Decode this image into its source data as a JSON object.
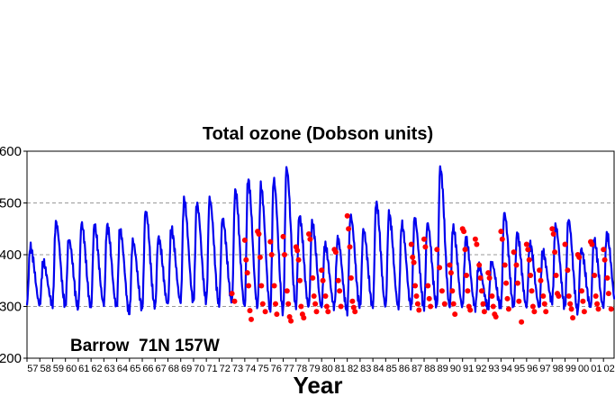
{
  "chart_data": {
    "type": "line",
    "title": "Total ozone (Dobson units)",
    "xlabel": "Year",
    "ylabel": "",
    "annotation": "Barrow  71N 157W",
    "xlim": [
      1957,
      2002.9
    ],
    "ylim": [
      200,
      600
    ],
    "yticks": [
      200,
      300,
      400,
      500,
      600
    ],
    "xtick_labels": [
      "57",
      "58",
      "59",
      "60",
      "61",
      "62",
      "63",
      "64",
      "65",
      "66",
      "67",
      "68",
      "69",
      "70",
      "71",
      "72",
      "73",
      "74",
      "75",
      "76",
      "77",
      "78",
      "79",
      "80",
      "81",
      "82",
      "83",
      "84",
      "85",
      "86",
      "87",
      "88",
      "89",
      "90",
      "91",
      "92",
      "93",
      "94",
      "95",
      "96",
      "97",
      "98",
      "99",
      "00",
      "01",
      "02"
    ],
    "grid": "horizontal dashed at 300, 400, 500",
    "colors": {
      "series": "#0000ee",
      "points": "#ff0000",
      "grid": "#999999"
    },
    "series": [
      {
        "kind": "line",
        "seasonal_peaks": [
          {
            "year": 1957,
            "peak": 415
          },
          {
            "year": 1958,
            "peak": 385
          },
          {
            "year": 1959,
            "peak": 462
          },
          {
            "year": 1960,
            "peak": 430
          },
          {
            "year": 1961,
            "peak": 460
          },
          {
            "year": 1962,
            "peak": 455
          },
          {
            "year": 1963,
            "peak": 455
          },
          {
            "year": 1964,
            "peak": 448
          },
          {
            "year": 1965,
            "peak": 426
          },
          {
            "year": 1966,
            "peak": 485
          },
          {
            "year": 1967,
            "peak": 432
          },
          {
            "year": 1968,
            "peak": 450
          },
          {
            "year": 1969,
            "peak": 505
          },
          {
            "year": 1970,
            "peak": 498
          },
          {
            "year": 1971,
            "peak": 508
          },
          {
            "year": 1972,
            "peak": 470
          },
          {
            "year": 1973,
            "peak": 523
          },
          {
            "year": 1974,
            "peak": 545
          },
          {
            "year": 1975,
            "peak": 532
          },
          {
            "year": 1976,
            "peak": 545
          },
          {
            "year": 1977,
            "peak": 567
          },
          {
            "year": 1978,
            "peak": 475
          },
          {
            "year": 1979,
            "peak": 460
          },
          {
            "year": 1980,
            "peak": 418
          },
          {
            "year": 1981,
            "peak": 430
          },
          {
            "year": 1982,
            "peak": 475
          },
          {
            "year": 1983,
            "peak": 448
          },
          {
            "year": 1984,
            "peak": 500
          },
          {
            "year": 1985,
            "peak": 478
          },
          {
            "year": 1986,
            "peak": 458
          },
          {
            "year": 1987,
            "peak": 470
          },
          {
            "year": 1988,
            "peak": 460
          },
          {
            "year": 1989,
            "peak": 568
          },
          {
            "year": 1990,
            "peak": 452
          },
          {
            "year": 1991,
            "peak": 430
          },
          {
            "year": 1992,
            "peak": 380
          },
          {
            "year": 1993,
            "peak": 385
          },
          {
            "year": 1994,
            "peak": 480
          },
          {
            "year": 1995,
            "peak": 440
          },
          {
            "year": 1996,
            "peak": 420
          },
          {
            "year": 1997,
            "peak": 405
          },
          {
            "year": 1998,
            "peak": 455
          },
          {
            "year": 1999,
            "peak": 468
          },
          {
            "year": 2000,
            "peak": 410
          },
          {
            "year": 2001,
            "peak": 428
          },
          {
            "year": 2002,
            "peak": 440
          }
        ],
        "seasonal_troughs": [
          {
            "year": 1957,
            "trough": 305
          },
          {
            "year": 1958,
            "trough": 305
          },
          {
            "year": 1959,
            "trough": 305
          },
          {
            "year": 1960,
            "trough": 303
          },
          {
            "year": 1961,
            "trough": 298
          },
          {
            "year": 1962,
            "trough": 298
          },
          {
            "year": 1963,
            "trough": 305
          },
          {
            "year": 1964,
            "trough": 300
          },
          {
            "year": 1965,
            "trough": 288
          },
          {
            "year": 1966,
            "trough": 298
          },
          {
            "year": 1967,
            "trough": 300
          },
          {
            "year": 1968,
            "trough": 305
          },
          {
            "year": 1969,
            "trough": 310
          },
          {
            "year": 1970,
            "trough": 310
          },
          {
            "year": 1971,
            "trough": 312
          },
          {
            "year": 1972,
            "trough": 305
          },
          {
            "year": 1973,
            "trough": 310
          },
          {
            "year": 1974,
            "trough": 300
          },
          {
            "year": 1975,
            "trough": 300
          },
          {
            "year": 1976,
            "trough": 295
          },
          {
            "year": 1977,
            "trough": 290
          },
          {
            "year": 1978,
            "trough": 300
          },
          {
            "year": 1979,
            "trough": 300
          },
          {
            "year": 1980,
            "trough": 300
          },
          {
            "year": 1981,
            "trough": 300
          },
          {
            "year": 1982,
            "trough": 292
          },
          {
            "year": 1983,
            "trough": 300
          },
          {
            "year": 1984,
            "trough": 300
          },
          {
            "year": 1985,
            "trough": 300
          },
          {
            "year": 1986,
            "trough": 300
          },
          {
            "year": 1987,
            "trough": 300
          },
          {
            "year": 1988,
            "trough": 300
          },
          {
            "year": 1989,
            "trough": 300
          },
          {
            "year": 1990,
            "trough": 300
          },
          {
            "year": 1991,
            "trough": 300
          },
          {
            "year": 1992,
            "trough": 298
          },
          {
            "year": 1993,
            "trough": 298
          },
          {
            "year": 1994,
            "trough": 300
          },
          {
            "year": 1995,
            "trough": 300
          },
          {
            "year": 1996,
            "trough": 300
          },
          {
            "year": 1997,
            "trough": 300
          },
          {
            "year": 1998,
            "trough": 310
          },
          {
            "year": 1999,
            "trough": 300
          },
          {
            "year": 2000,
            "trough": 290
          },
          {
            "year": 2001,
            "trough": 300
          },
          {
            "year": 2002,
            "trough": 300
          }
        ]
      },
      {
        "kind": "points",
        "values": [
          [
            1973.0,
            325
          ],
          [
            1973.2,
            310
          ],
          [
            1974.0,
            428
          ],
          [
            1974.1,
            390
          ],
          [
            1974.2,
            365
          ],
          [
            1974.3,
            340
          ],
          [
            1974.4,
            292
          ],
          [
            1974.5,
            275
          ],
          [
            1975.0,
            445
          ],
          [
            1975.1,
            440
          ],
          [
            1975.2,
            395
          ],
          [
            1975.3,
            340
          ],
          [
            1975.4,
            305
          ],
          [
            1975.6,
            290
          ],
          [
            1976.0,
            425
          ],
          [
            1976.1,
            400
          ],
          [
            1976.3,
            340
          ],
          [
            1976.4,
            305
          ],
          [
            1976.5,
            285
          ],
          [
            1977.0,
            435
          ],
          [
            1977.1,
            400
          ],
          [
            1977.3,
            330
          ],
          [
            1977.4,
            305
          ],
          [
            1977.5,
            280
          ],
          [
            1977.6,
            272
          ],
          [
            1978.0,
            415
          ],
          [
            1978.1,
            408
          ],
          [
            1978.2,
            390
          ],
          [
            1978.3,
            350
          ],
          [
            1978.4,
            300
          ],
          [
            1978.5,
            285
          ],
          [
            1978.6,
            278
          ],
          [
            1979.0,
            440
          ],
          [
            1979.1,
            430
          ],
          [
            1979.3,
            355
          ],
          [
            1979.4,
            320
          ],
          [
            1979.5,
            305
          ],
          [
            1979.6,
            290
          ],
          [
            1980.0,
            370
          ],
          [
            1980.1,
            350
          ],
          [
            1980.3,
            320
          ],
          [
            1980.4,
            300
          ],
          [
            1980.5,
            290
          ],
          [
            1981.0,
            410
          ],
          [
            1981.1,
            405
          ],
          [
            1981.3,
            350
          ],
          [
            1981.4,
            330
          ],
          [
            1981.5,
            300
          ],
          [
            1982.0,
            475
          ],
          [
            1982.1,
            450
          ],
          [
            1982.2,
            415
          ],
          [
            1982.3,
            355
          ],
          [
            1982.4,
            310
          ],
          [
            1982.5,
            298
          ],
          [
            1982.6,
            290
          ],
          [
            1987.0,
            420
          ],
          [
            1987.1,
            395
          ],
          [
            1987.2,
            385
          ],
          [
            1987.3,
            340
          ],
          [
            1987.4,
            320
          ],
          [
            1987.5,
            305
          ],
          [
            1987.6,
            293
          ],
          [
            1988.0,
            430
          ],
          [
            1988.1,
            415
          ],
          [
            1988.3,
            340
          ],
          [
            1988.4,
            315
          ],
          [
            1988.5,
            300
          ],
          [
            1989.0,
            410
          ],
          [
            1989.2,
            375
          ],
          [
            1989.4,
            330
          ],
          [
            1989.6,
            305
          ],
          [
            1990.0,
            380
          ],
          [
            1990.1,
            365
          ],
          [
            1990.2,
            330
          ],
          [
            1990.3,
            305
          ],
          [
            1990.4,
            285
          ],
          [
            1991.0,
            450
          ],
          [
            1991.1,
            445
          ],
          [
            1991.2,
            410
          ],
          [
            1991.3,
            360
          ],
          [
            1991.4,
            330
          ],
          [
            1991.5,
            300
          ],
          [
            1991.6,
            293
          ],
          [
            1992.0,
            430
          ],
          [
            1992.1,
            420
          ],
          [
            1992.3,
            380
          ],
          [
            1992.4,
            355
          ],
          [
            1992.5,
            330
          ],
          [
            1992.6,
            305
          ],
          [
            1992.7,
            290
          ],
          [
            1993.0,
            365
          ],
          [
            1993.1,
            355
          ],
          [
            1993.3,
            320
          ],
          [
            1993.4,
            300
          ],
          [
            1993.5,
            285
          ],
          [
            1993.6,
            280
          ],
          [
            1994.0,
            445
          ],
          [
            1994.1,
            430
          ],
          [
            1994.3,
            380
          ],
          [
            1994.4,
            345
          ],
          [
            1994.5,
            315
          ],
          [
            1994.6,
            295
          ],
          [
            1995.0,
            405
          ],
          [
            1995.2,
            380
          ],
          [
            1995.3,
            345
          ],
          [
            1995.4,
            310
          ],
          [
            1995.6,
            270
          ],
          [
            1996.0,
            420
          ],
          [
            1996.1,
            410
          ],
          [
            1996.2,
            390
          ],
          [
            1996.3,
            360
          ],
          [
            1996.4,
            330
          ],
          [
            1996.5,
            300
          ],
          [
            1996.6,
            290
          ],
          [
            1997.0,
            370
          ],
          [
            1997.1,
            350
          ],
          [
            1997.3,
            320
          ],
          [
            1997.4,
            305
          ],
          [
            1997.5,
            290
          ],
          [
            1998.0,
            450
          ],
          [
            1998.1,
            440
          ],
          [
            1998.2,
            405
          ],
          [
            1998.3,
            360
          ],
          [
            1998.4,
            325
          ],
          [
            1998.5,
            320
          ],
          [
            1999.0,
            420
          ],
          [
            1999.2,
            370
          ],
          [
            1999.3,
            320
          ],
          [
            1999.4,
            305
          ],
          [
            1999.5,
            295
          ],
          [
            1999.6,
            278
          ],
          [
            2000.0,
            400
          ],
          [
            2000.1,
            395
          ],
          [
            2000.3,
            330
          ],
          [
            2000.4,
            310
          ],
          [
            2000.5,
            290
          ],
          [
            2001.0,
            425
          ],
          [
            2001.1,
            420
          ],
          [
            2001.3,
            360
          ],
          [
            2001.4,
            320
          ],
          [
            2001.5,
            305
          ],
          [
            2001.6,
            295
          ],
          [
            2002.0,
            410
          ],
          [
            2002.1,
            390
          ],
          [
            2002.3,
            355
          ],
          [
            2002.4,
            325
          ],
          [
            2002.6,
            295
          ]
        ]
      }
    ]
  }
}
